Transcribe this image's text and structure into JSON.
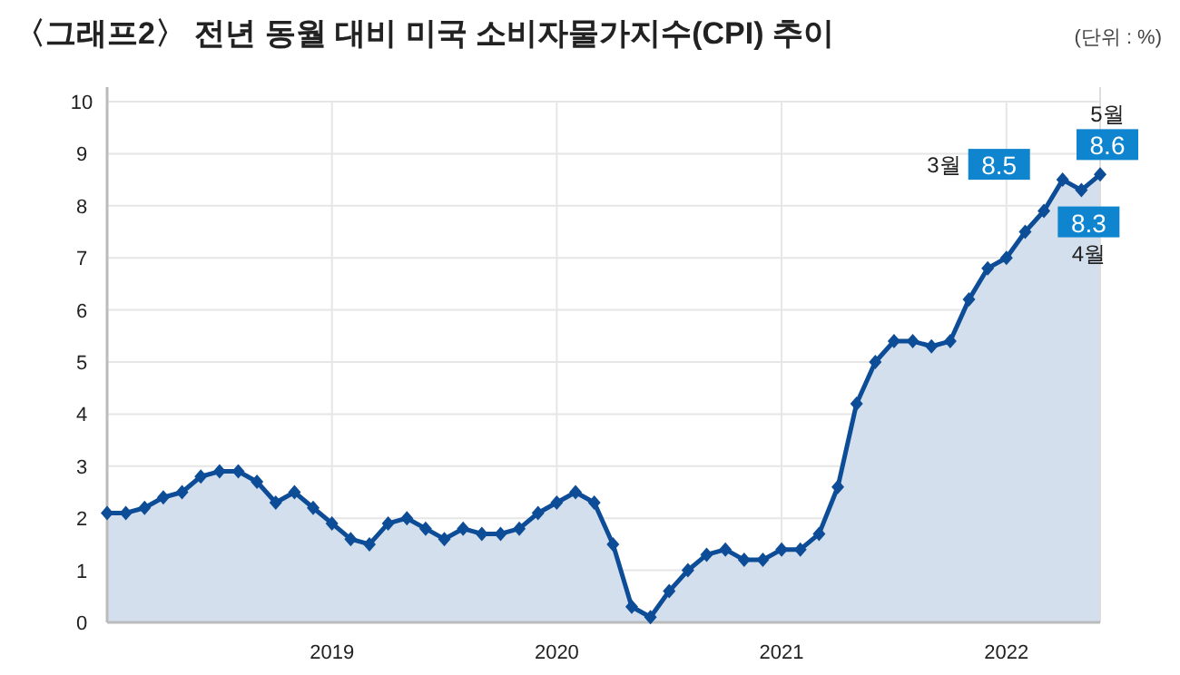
{
  "chart_data": {
    "type": "area",
    "title": "〈그래프2〉 전년 동월 대비 미국 소비자물가지수(CPI) 추이",
    "annotations": [
      "(단위 : %)",
      "3월",
      "4월",
      "5월"
    ],
    "categories": [
      null,
      null,
      null,
      null,
      null,
      null,
      null,
      null,
      null,
      null,
      null,
      null,
      "2019",
      null,
      null,
      null,
      null,
      null,
      null,
      null,
      null,
      null,
      null,
      null,
      "2020",
      null,
      null,
      null,
      null,
      null,
      null,
      null,
      null,
      null,
      null,
      null,
      "2021",
      null,
      null,
      null,
      null,
      null,
      null,
      null,
      null,
      null,
      null,
      null,
      "2022",
      null,
      null,
      null,
      null,
      null
    ],
    "values": [
      2.1,
      2.1,
      2.2,
      2.4,
      2.5,
      2.8,
      2.9,
      2.9,
      2.7,
      2.3,
      2.5,
      2.2,
      1.9,
      1.6,
      1.5,
      1.9,
      2.0,
      1.8,
      1.6,
      1.8,
      1.7,
      1.7,
      1.8,
      2.1,
      2.3,
      2.5,
      2.3,
      1.5,
      0.3,
      0.1,
      0.6,
      1.0,
      1.3,
      1.4,
      1.2,
      1.2,
      1.4,
      1.4,
      1.7,
      2.6,
      4.2,
      5.0,
      5.4,
      5.4,
      5.3,
      5.4,
      6.2,
      6.8,
      7.0,
      7.5,
      7.9,
      8.5,
      8.3,
      8.6
    ],
    "value_labels": [
      null,
      null,
      null,
      null,
      null,
      null,
      null,
      null,
      null,
      null,
      null,
      null,
      null,
      null,
      null,
      null,
      null,
      null,
      null,
      null,
      null,
      null,
      null,
      null,
      null,
      null,
      null,
      null,
      null,
      null,
      null,
      null,
      null,
      null,
      null,
      null,
      null,
      null,
      null,
      null,
      null,
      null,
      null,
      null,
      null,
      null,
      null,
      null,
      null,
      null,
      null,
      "8.5",
      "8.3",
      "8.6"
    ],
    "color": "#0d4c97",
    "marker": "diamond",
    "ylim": [
      0,
      10
    ],
    "yticks": [
      0,
      1,
      2,
      3,
      4,
      5,
      6,
      7,
      8,
      9,
      10
    ],
    "grid": true
  }
}
